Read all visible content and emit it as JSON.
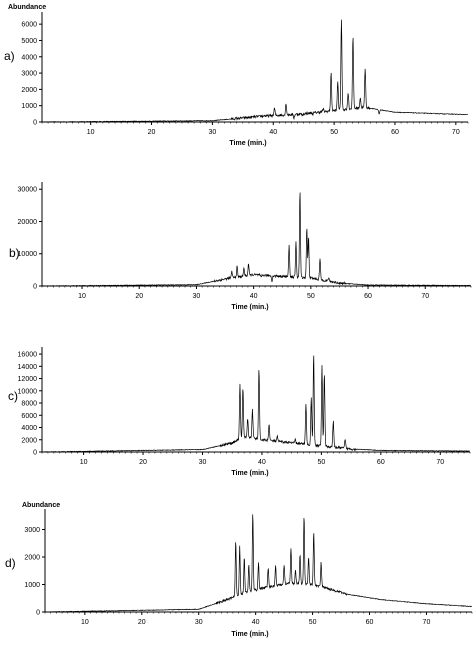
{
  "chart_data": [
    {
      "type": "line",
      "panel_label": "a)",
      "ylabel": "Abundance",
      "xlabel": "Time (min.)",
      "xlim": [
        2,
        72
      ],
      "ylim": [
        0,
        6500
      ],
      "xticks": [
        10,
        20,
        30,
        40,
        50,
        60,
        70
      ],
      "yticks": [
        1000,
        2000,
        3000,
        4000,
        5000,
        6000
      ],
      "baseline": [
        [
          2,
          0
        ],
        [
          30,
          80
        ],
        [
          38,
          350
        ],
        [
          45,
          500
        ],
        [
          50,
          700
        ],
        [
          55,
          900
        ],
        [
          60,
          600
        ],
        [
          72,
          450
        ]
      ],
      "peaks": [
        [
          38.5,
          400
        ],
        [
          40.2,
          850
        ],
        [
          42.1,
          1150
        ],
        [
          43.4,
          250
        ],
        [
          44.8,
          400
        ],
        [
          46.5,
          500
        ],
        [
          48.2,
          800
        ],
        [
          49.5,
          3000
        ],
        [
          50.6,
          2500
        ],
        [
          51.2,
          6300
        ],
        [
          52.3,
          1800
        ],
        [
          53.1,
          5200
        ],
        [
          54.3,
          1500
        ],
        [
          55.1,
          3300
        ],
        [
          57.4,
          500
        ]
      ]
    },
    {
      "type": "line",
      "panel_label": "b)",
      "ylabel": "",
      "xlabel": "Time (min.)",
      "xlim": [
        3,
        78
      ],
      "ylim": [
        0,
        31000
      ],
      "xticks": [
        10,
        20,
        30,
        40,
        50,
        60,
        70
      ],
      "yticks": [
        10000,
        20000,
        30000
      ],
      "baseline": [
        [
          3,
          0
        ],
        [
          30,
          400
        ],
        [
          36,
          2500
        ],
        [
          40,
          3500
        ],
        [
          45,
          3000
        ],
        [
          50,
          2500
        ],
        [
          55,
          900
        ],
        [
          60,
          300
        ],
        [
          78,
          150
        ]
      ],
      "peaks": [
        [
          36.2,
          4500
        ],
        [
          37.1,
          6000
        ],
        [
          38.3,
          5500
        ],
        [
          39.1,
          7000
        ],
        [
          41.3,
          2500
        ],
        [
          43.2,
          1600
        ],
        [
          46.2,
          12500
        ],
        [
          47.4,
          13500
        ],
        [
          48.1,
          29500
        ],
        [
          49.3,
          18000
        ],
        [
          49.6,
          15000
        ],
        [
          51.6,
          8500
        ],
        [
          53.1,
          2500
        ]
      ]
    },
    {
      "type": "line",
      "panel_label": "c)",
      "ylabel": "",
      "xlabel": "Time (min.)",
      "xlim": [
        3,
        75
      ],
      "ylim": [
        0,
        16500
      ],
      "xticks": [
        10,
        20,
        30,
        40,
        50,
        60,
        70
      ],
      "yticks": [
        2000,
        4000,
        6000,
        8000,
        10000,
        12000,
        14000,
        16000
      ],
      "baseline": [
        [
          3,
          0
        ],
        [
          30,
          400
        ],
        [
          35,
          1500
        ],
        [
          37,
          2500
        ],
        [
          40,
          2000
        ],
        [
          45,
          1500
        ],
        [
          50,
          1000
        ],
        [
          55,
          500
        ],
        [
          60,
          250
        ],
        [
          75,
          150
        ]
      ],
      "peaks": [
        [
          36.3,
          11000
        ],
        [
          36.8,
          10500
        ],
        [
          37.6,
          5500
        ],
        [
          38.4,
          7000
        ],
        [
          39.5,
          13500
        ],
        [
          41.2,
          4500
        ],
        [
          42.6,
          2500
        ],
        [
          45.6,
          2000
        ],
        [
          47.4,
          8000
        ],
        [
          48.3,
          9000
        ],
        [
          48.7,
          16000
        ],
        [
          50.1,
          14000
        ],
        [
          50.5,
          13000
        ],
        [
          52.0,
          5000
        ],
        [
          54.0,
          2000
        ]
      ]
    },
    {
      "type": "line",
      "panel_label": "d)",
      "ylabel": "Abundance",
      "xlabel": "Time (min.)",
      "xlim": [
        3,
        78
      ],
      "ylim": [
        0,
        3600
      ],
      "xticks": [
        10,
        20,
        30,
        40,
        50,
        60,
        70
      ],
      "yticks": [
        1000,
        2000,
        3000
      ],
      "baseline": [
        [
          3,
          0
        ],
        [
          30,
          100
        ],
        [
          35,
          450
        ],
        [
          38,
          700
        ],
        [
          42,
          900
        ],
        [
          46,
          1050
        ],
        [
          50,
          1000
        ],
        [
          52,
          900
        ],
        [
          56,
          650
        ],
        [
          62,
          450
        ],
        [
          70,
          300
        ],
        [
          78,
          200
        ]
      ],
      "peaks": [
        [
          36.5,
          2600
        ],
        [
          37.2,
          2400
        ],
        [
          38.0,
          2000
        ],
        [
          38.8,
          1700
        ],
        [
          39.5,
          3600
        ],
        [
          40.5,
          1800
        ],
        [
          42.2,
          1600
        ],
        [
          43.5,
          1700
        ],
        [
          45.0,
          1700
        ],
        [
          46.2,
          2300
        ],
        [
          47.0,
          1500
        ],
        [
          47.8,
          2100
        ],
        [
          48.5,
          3500
        ],
        [
          49.3,
          2000
        ],
        [
          50.2,
          2900
        ],
        [
          51.5,
          1800
        ]
      ]
    }
  ]
}
